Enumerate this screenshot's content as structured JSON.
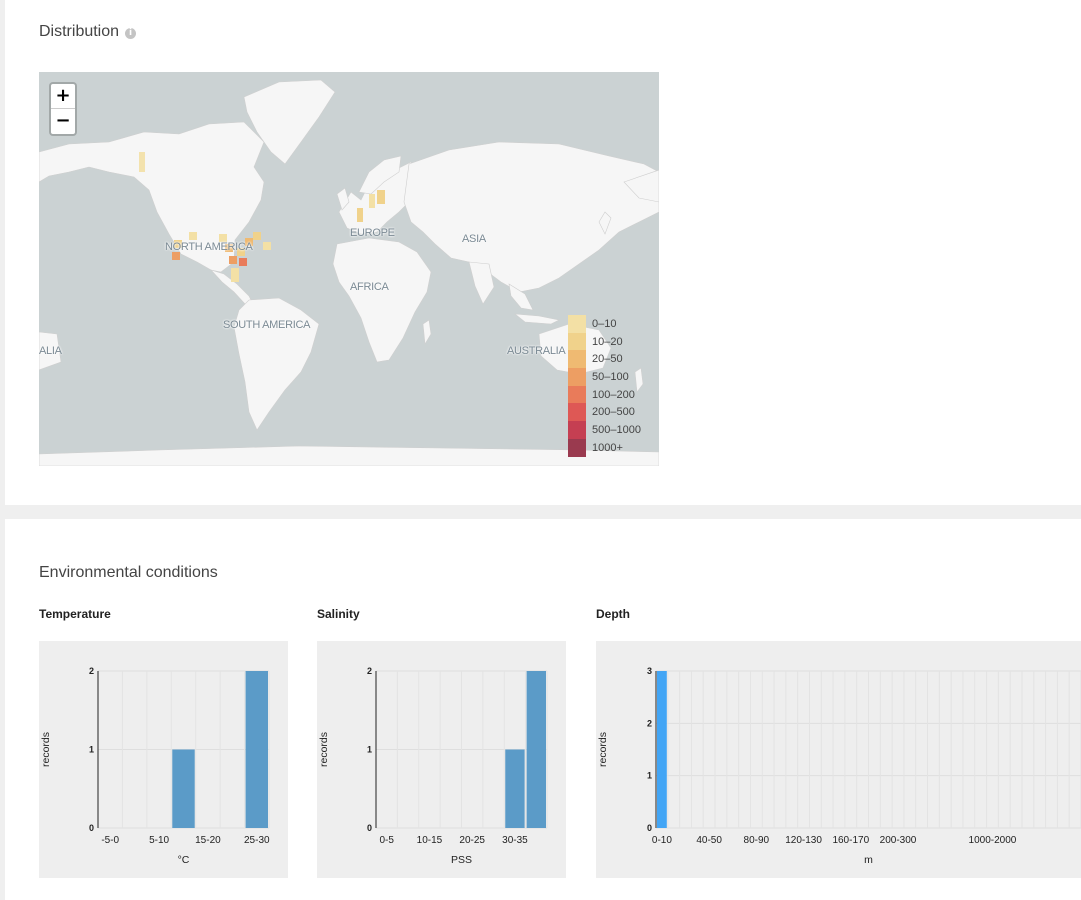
{
  "distribution": {
    "title": "Distribution",
    "info_icon": "info-icon",
    "zoom_in_label": "+",
    "zoom_out_label": "−",
    "map_labels": [
      {
        "text": "NORTH AMERICA"
      },
      {
        "text": "EUROPE"
      },
      {
        "text": "ASIA"
      },
      {
        "text": "AFRICA"
      },
      {
        "text": "SOUTH AMERICA"
      },
      {
        "text": "AUSTRALIA"
      },
      {
        "text": "ALIA"
      }
    ],
    "legend": [
      {
        "label": "0–10",
        "color": "#f3e0a5"
      },
      {
        "label": "10–20",
        "color": "#f0d28b"
      },
      {
        "label": "20–50",
        "color": "#efba72"
      },
      {
        "label": "50–100",
        "color": "#ed9e63"
      },
      {
        "label": "100–200",
        "color": "#e97b5a"
      },
      {
        "label": "200–500",
        "color": "#de5855"
      },
      {
        "label": "500–1000",
        "color": "#c53f52"
      },
      {
        "label": "1000+",
        "color": "#9a3a4f"
      }
    ]
  },
  "environment": {
    "title": "Environmental conditions",
    "charts": [
      {
        "title": "Temperature",
        "chart_data": {
          "type": "bar",
          "ylabel": "records",
          "xlabel": "°C",
          "ylim": [
            0,
            2
          ],
          "yticks": [
            "0",
            "1",
            "2"
          ],
          "tick_labels": [
            "-5-0",
            "5-10",
            "15-20",
            "25-30"
          ],
          "bins": [
            "-5-0",
            "0-5",
            "5-10",
            "10-15",
            "15-20",
            "20-25",
            "25-30"
          ],
          "values": [
            0,
            0,
            0,
            1,
            0,
            0,
            2
          ],
          "color": "#5b9bc8"
        }
      },
      {
        "title": "Salinity",
        "chart_data": {
          "type": "bar",
          "ylabel": "records",
          "xlabel": "PSS",
          "ylim": [
            0,
            2
          ],
          "yticks": [
            "0",
            "1",
            "2"
          ],
          "tick_labels": [
            "0-5",
            "10-15",
            "20-25",
            "30-35"
          ],
          "bins": [
            "0-5",
            "5-10",
            "10-15",
            "15-20",
            "20-25",
            "25-30",
            "30-35",
            "35-40"
          ],
          "values": [
            0,
            0,
            0,
            0,
            0,
            0,
            1,
            2
          ],
          "color": "#5b9bc8"
        }
      },
      {
        "title": "Depth",
        "chart_data": {
          "type": "bar",
          "ylabel": "",
          "xlabel": "m",
          "ylim": [
            0,
            3
          ],
          "yticks": [
            "0",
            "1",
            "2",
            "3"
          ],
          "tick_labels": [
            "0-10",
            "40-50",
            "80-90",
            "120-130",
            "160-170",
            "200-300",
            "1000-2000"
          ],
          "bins": [
            "0-10"
          ],
          "values": [
            3
          ],
          "color": "#42a5f5"
        }
      }
    ],
    "depth_ylabel": "records"
  }
}
